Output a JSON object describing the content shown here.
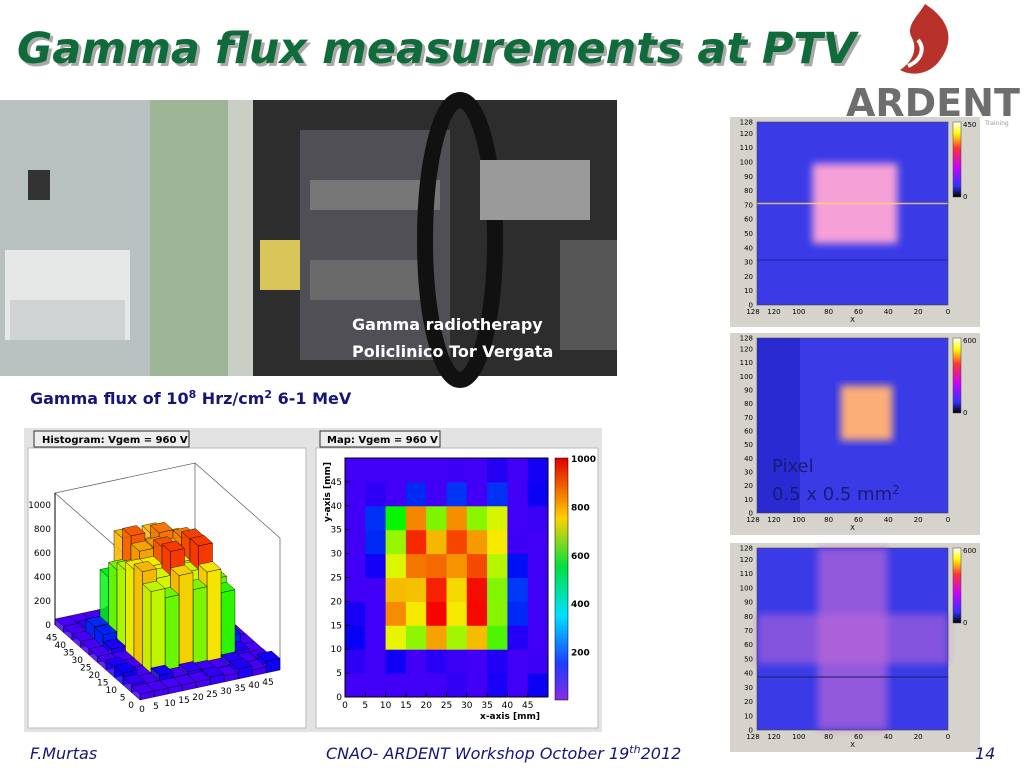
{
  "header": {
    "title": "Gamma flux measurements at PTV",
    "logo": "ARDENT",
    "logo_sub": "Training"
  },
  "photo": {
    "caption": [
      "Gamma radiotherapy",
      "Policlinico Tor Vergata"
    ]
  },
  "flux": {
    "text": "Gamma flux of 10",
    "exp": "8",
    "unit": " Hrz/cm",
    "unit_exp": "2",
    "energy": " 6-1 MeV"
  },
  "histogram": {
    "title": "Histogram: Vgem = 960 V",
    "z_ticks": [
      "0",
      "200",
      "400",
      "600",
      "800",
      "1000"
    ],
    "x_ticks": [
      "0",
      "5",
      "10",
      "15",
      "20",
      "25",
      "30",
      "35",
      "40",
      "45"
    ],
    "y_ticks": [
      "0",
      "5",
      "10",
      "15",
      "20",
      "25",
      "30",
      "35",
      "40",
      "45"
    ]
  },
  "map": {
    "title": "Map: Vgem = 960 V",
    "x_label": "x-axis [mm]",
    "y_label": "y-axis [mm]",
    "x_ticks": [
      "0",
      "5",
      "10",
      "15",
      "20",
      "25",
      "30",
      "35",
      "40",
      "45"
    ],
    "y_ticks": [
      "0",
      "5",
      "10",
      "15",
      "20",
      "25",
      "30",
      "35",
      "40",
      "45"
    ],
    "color_ticks": [
      "200",
      "400",
      "600",
      "800",
      "1000"
    ]
  },
  "panels": [
    {
      "y_ticks": [
        "0",
        "10",
        "20",
        "30",
        "40",
        "50",
        "60",
        "70",
        "80",
        "90",
        "100",
        "110",
        "120",
        "128"
      ],
      "x_ticks": [
        "128",
        "120",
        "100",
        "80",
        "60",
        "40",
        "20",
        "0"
      ],
      "x_label": "X",
      "scale": [
        "450",
        "0"
      ]
    },
    {
      "y_ticks": [
        "0",
        "10",
        "20",
        "30",
        "40",
        "50",
        "60",
        "70",
        "80",
        "90",
        "100",
        "110",
        "120",
        "128"
      ],
      "x_ticks": [
        "128",
        "120",
        "100",
        "80",
        "60",
        "40",
        "20",
        "0"
      ],
      "x_label": "X",
      "scale": [
        "600",
        "0"
      ]
    },
    {
      "y_ticks": [
        "0",
        "10",
        "20",
        "30",
        "40",
        "50",
        "60",
        "70",
        "80",
        "90",
        "100",
        "110",
        "120",
        "128"
      ],
      "x_ticks": [
        "128",
        "120",
        "100",
        "80",
        "60",
        "40",
        "20",
        "0"
      ],
      "x_label": "X",
      "scale": [
        "600",
        "0"
      ]
    }
  ],
  "pixel_note": {
    "label": "Pixel",
    "size": "0.5 x 0.5 mm",
    "exp": "2"
  },
  "footer": {
    "author": "F.Murtas",
    "event": "CNAO- ARDENT Workshop October 19",
    "event_sup": "th",
    "year": "2012",
    "page": "14"
  }
}
